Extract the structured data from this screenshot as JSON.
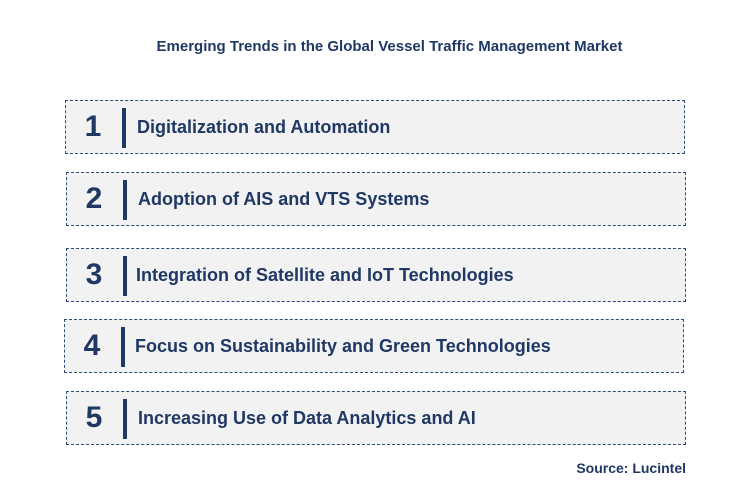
{
  "title": "Emerging Trends in the Global Vessel Traffic Management Market",
  "trends": [
    {
      "number": "1",
      "label": "Digitalization and Automation"
    },
    {
      "number": "2",
      "label": "Adoption of AIS and VTS Systems"
    },
    {
      "number": "3",
      "label": "Integration of Satellite and IoT Technologies"
    },
    {
      "number": "4",
      "label": "Focus on Sustainability and Green Technologies"
    },
    {
      "number": "5",
      "label": "Increasing Use of Data Analytics and AI"
    }
  ],
  "source": "Source: Lucintel",
  "colors": {
    "primary": "#1f3864",
    "box_background": "#f2f2f2",
    "border": "#2e4a7a"
  }
}
